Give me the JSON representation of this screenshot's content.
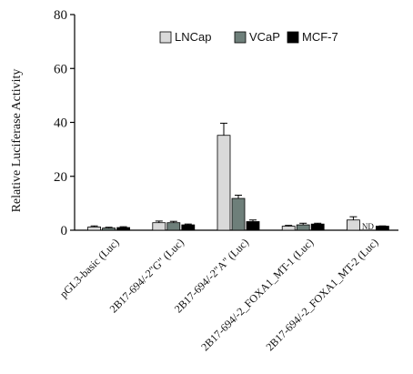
{
  "chart_data": {
    "type": "bar",
    "title": "",
    "xlabel": "",
    "ylabel": "Relative Luciferase Activity",
    "ylim": [
      0,
      80
    ],
    "yticks": [
      0,
      20,
      40,
      60,
      80
    ],
    "grid": false,
    "legend_position": "top-right",
    "categories": [
      "pGL3-basic (Luc)",
      "2B17-694/-2\"G\" (Luc)",
      "2B17-694/-2\"A\" (Luc)",
      "2B17-694/-2_FOXA1_MT-1 (Luc)",
      "2B17-694/-2_FOXA1_MT-2 (Luc)"
    ],
    "series": [
      {
        "name": "LNCap",
        "color": "#d9d9d9",
        "values": [
          1.2,
          2.8,
          35.2,
          1.5,
          3.8
        ],
        "errors": [
          0.4,
          0.6,
          4.5,
          0.3,
          1.2
        ]
      },
      {
        "name": "VCaP",
        "color": "#6e7f7a",
        "values": [
          0.8,
          2.8,
          11.8,
          2.0,
          null
        ],
        "errors": [
          0.3,
          0.5,
          1.2,
          0.6,
          null
        ]
      },
      {
        "name": "MCF-7",
        "color": "#000000",
        "values": [
          1.0,
          2.0,
          3.2,
          2.3,
          1.5
        ],
        "errors": [
          0.3,
          0.3,
          0.6,
          0.3,
          0.1
        ]
      }
    ],
    "annotations": [
      {
        "text": "ND",
        "category_index": 4,
        "series": "VCaP"
      }
    ]
  }
}
